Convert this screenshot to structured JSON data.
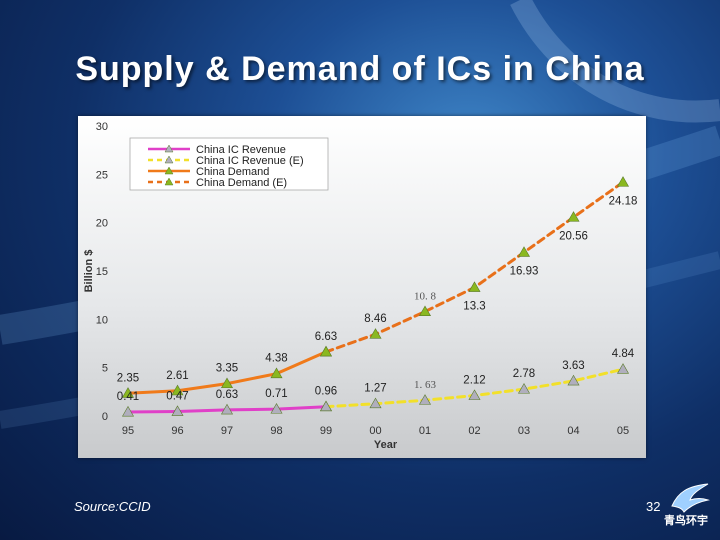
{
  "slide": {
    "title": "Supply & Demand of ICs in China",
    "source": "Source:CCID",
    "page_number": "32",
    "logo_text": "青鸟环宇"
  },
  "chart_data": {
    "type": "line",
    "categories": [
      "95",
      "96",
      "97",
      "98",
      "99",
      "00",
      "01",
      "02",
      "03",
      "04",
      "05"
    ],
    "xlabel": "Year",
    "ylabel": "Billion $",
    "ylim": [
      0,
      30
    ],
    "yticks": [
      0,
      5,
      10,
      15,
      20,
      25,
      30
    ],
    "grid": false,
    "legend_position": "top-left",
    "series": [
      {
        "name": "China IC Revenue",
        "color": "#e040c8",
        "dashed": false,
        "x": [
          "95",
          "96",
          "97",
          "98",
          "99"
        ],
        "values": [
          0.41,
          0.47,
          0.63,
          0.71,
          0.96
        ]
      },
      {
        "name": "China IC Revenue (E)",
        "color": "#f2e02a",
        "dashed": true,
        "x": [
          "99",
          "00",
          "01",
          "02",
          "03",
          "04",
          "05"
        ],
        "values": [
          0.96,
          1.27,
          1.63,
          2.12,
          2.78,
          3.63,
          4.84
        ]
      },
      {
        "name": "China Demand",
        "color": "#f07a1a",
        "dashed": false,
        "x": [
          "95",
          "96",
          "97",
          "98",
          "99"
        ],
        "values": [
          2.35,
          2.61,
          3.35,
          4.38,
          6.63
        ]
      },
      {
        "name": "China Demand (E)",
        "color": "#e8701a",
        "dashed": true,
        "x": [
          "99",
          "00",
          "01",
          "02",
          "03",
          "04",
          "05"
        ],
        "values": [
          6.63,
          8.46,
          10.8,
          13.3,
          16.93,
          20.56,
          24.18
        ]
      }
    ],
    "data_labels": [
      {
        "x": "95",
        "text": "2.35",
        "ref": 2.35,
        "pos": "above"
      },
      {
        "x": "96",
        "text": "2.61",
        "ref": 2.61,
        "pos": "above"
      },
      {
        "x": "97",
        "text": "3.35",
        "ref": 3.35,
        "pos": "above"
      },
      {
        "x": "98",
        "text": "4.38",
        "ref": 4.38,
        "pos": "above"
      },
      {
        "x": "99",
        "text": "6.63",
        "ref": 6.63,
        "pos": "above"
      },
      {
        "x": "00",
        "text": "8.46",
        "ref": 8.46,
        "pos": "above"
      },
      {
        "x": "01",
        "text": "10. 8",
        "ref": 10.8,
        "pos": "above",
        "serif": true
      },
      {
        "x": "02",
        "text": "13.3",
        "ref": 13.3,
        "pos": "below"
      },
      {
        "x": "03",
        "text": "16.93",
        "ref": 16.93,
        "pos": "below"
      },
      {
        "x": "04",
        "text": "20.56",
        "ref": 20.56,
        "pos": "below"
      },
      {
        "x": "05",
        "text": "24.18",
        "ref": 24.18,
        "pos": "below"
      },
      {
        "x": "95",
        "text": "0.41",
        "ref": 0.41,
        "pos": "above"
      },
      {
        "x": "96",
        "text": "0.47",
        "ref": 0.47,
        "pos": "above"
      },
      {
        "x": "97",
        "text": "0.63",
        "ref": 0.63,
        "pos": "above"
      },
      {
        "x": "98",
        "text": "0.71",
        "ref": 0.71,
        "pos": "above"
      },
      {
        "x": "99",
        "text": "0.96",
        "ref": 0.96,
        "pos": "above"
      },
      {
        "x": "00",
        "text": "1.27",
        "ref": 1.27,
        "pos": "above"
      },
      {
        "x": "01",
        "text": "1. 63",
        "ref": 1.63,
        "pos": "above",
        "serif": true
      },
      {
        "x": "02",
        "text": "2.12",
        "ref": 2.12,
        "pos": "above"
      },
      {
        "x": "03",
        "text": "2.78",
        "ref": 2.78,
        "pos": "above"
      },
      {
        "x": "04",
        "text": "3.63",
        "ref": 3.63,
        "pos": "above"
      },
      {
        "x": "05",
        "text": "4.84",
        "ref": 4.84,
        "pos": "above"
      }
    ]
  }
}
